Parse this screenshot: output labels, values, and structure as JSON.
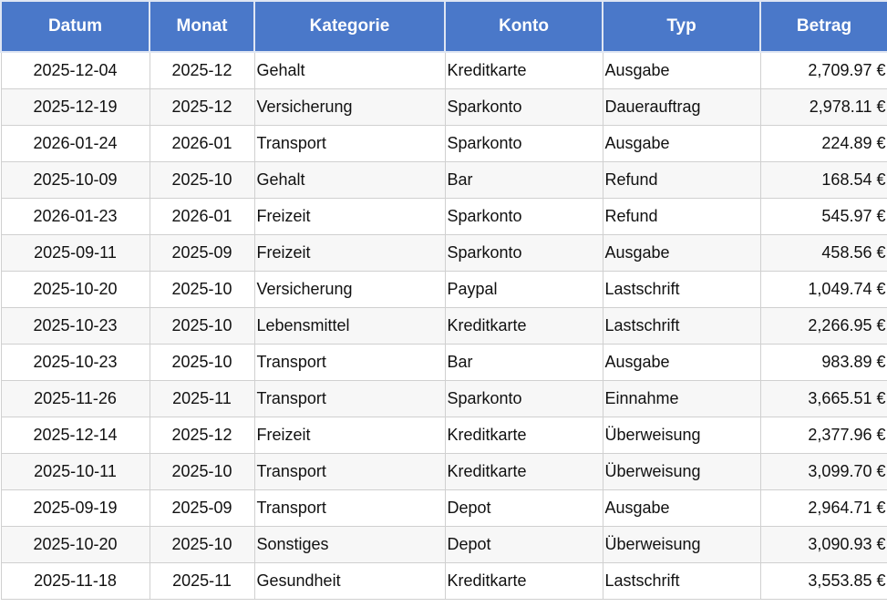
{
  "table": {
    "header": [
      "Datum",
      "Monat",
      "Kategorie",
      "Konto",
      "Typ",
      "Betrag"
    ],
    "rows": [
      [
        "2025-12-04",
        "2025-12",
        "Gehalt",
        "Kreditkarte",
        "Ausgabe",
        "2,709.97 €"
      ],
      [
        "2025-12-19",
        "2025-12",
        "Versicherung",
        "Sparkonto",
        "Dauerauftrag",
        "2,978.11 €"
      ],
      [
        "2026-01-24",
        "2026-01",
        "Transport",
        "Sparkonto",
        "Ausgabe",
        "224.89 €"
      ],
      [
        "2025-10-09",
        "2025-10",
        "Gehalt",
        "Bar",
        "Refund",
        "168.54 €"
      ],
      [
        "2026-01-23",
        "2026-01",
        "Freizeit",
        "Sparkonto",
        "Refund",
        "545.97 €"
      ],
      [
        "2025-09-11",
        "2025-09",
        "Freizeit",
        "Sparkonto",
        "Ausgabe",
        "458.56 €"
      ],
      [
        "2025-10-20",
        "2025-10",
        "Versicherung",
        "Paypal",
        "Lastschrift",
        "1,049.74 €"
      ],
      [
        "2025-10-23",
        "2025-10",
        "Lebensmittel",
        "Kreditkarte",
        "Lastschrift",
        "2,266.95 €"
      ],
      [
        "2025-10-23",
        "2025-10",
        "Transport",
        "Bar",
        "Ausgabe",
        "983.89 €"
      ],
      [
        "2025-11-26",
        "2025-11",
        "Transport",
        "Sparkonto",
        "Einnahme",
        "3,665.51 €"
      ],
      [
        "2025-12-14",
        "2025-12",
        "Freizeit",
        "Kreditkarte",
        "Überweisung",
        "2,377.96 €"
      ],
      [
        "2025-10-11",
        "2025-10",
        "Transport",
        "Kreditkarte",
        "Überweisung",
        "3,099.70 €"
      ],
      [
        "2025-09-19",
        "2025-09",
        "Transport",
        "Depot",
        "Ausgabe",
        "2,964.71 €"
      ],
      [
        "2025-10-20",
        "2025-10",
        "Sonstiges",
        "Depot",
        "Überweisung",
        "3,090.93 €"
      ],
      [
        "2025-11-18",
        "2025-11",
        "Gesundheit",
        "Kreditkarte",
        "Lastschrift",
        "3,553.85 €"
      ]
    ]
  }
}
